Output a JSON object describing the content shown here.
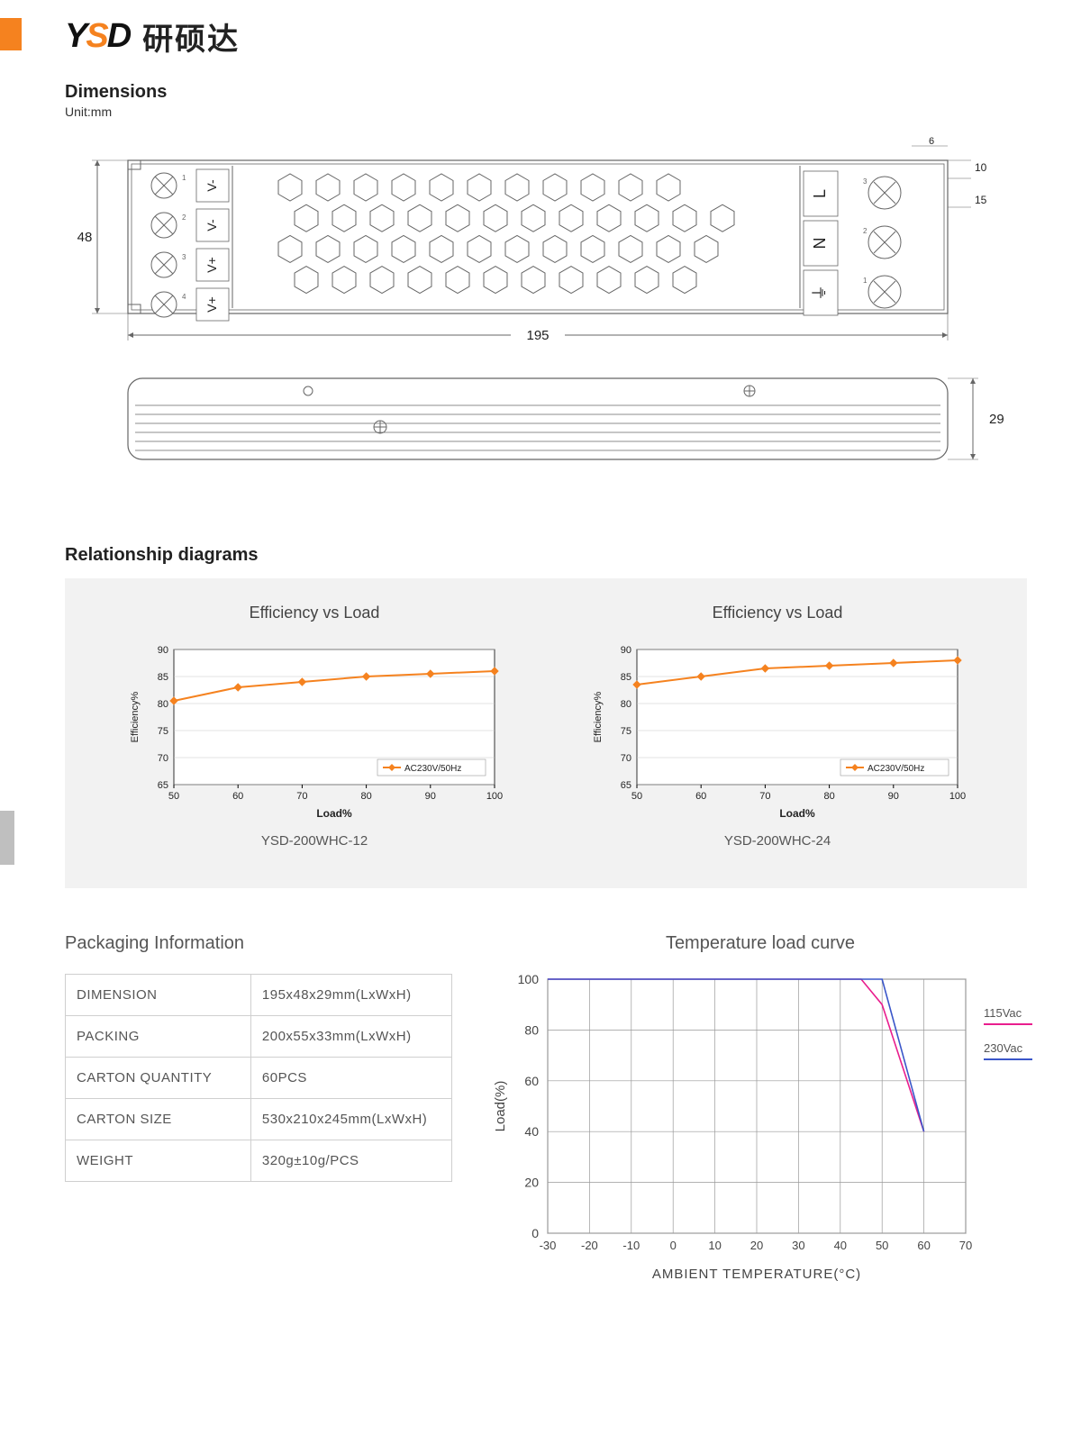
{
  "brand": {
    "logo_text": "YSD",
    "cn_text": "研硕达"
  },
  "dimensions": {
    "title": "Dimensions",
    "unit_label": "Unit:mm",
    "top_view": {
      "width_label": "195",
      "height_label": "48",
      "small_top_label": "6",
      "right_small_1": "10",
      "right_small_2": "15",
      "output_terminals": [
        "V-",
        "V-",
        "V+",
        "V+"
      ],
      "output_terminal_nums": [
        "1",
        "2",
        "3",
        "4"
      ],
      "input_labels": [
        "L",
        "N",
        "⏚"
      ],
      "input_nums": [
        "3",
        "2",
        "1"
      ]
    },
    "side_view": {
      "height_label": "29"
    },
    "stroke_color": "#666666",
    "fill_color": "#ffffff"
  },
  "relationship": {
    "section_title": "Relationship diagrams",
    "charts": [
      {
        "title": "Efficiency vs Load",
        "caption": "YSD-200WHC-12",
        "xlabel": "Load%",
        "ylabel": "Efficiency%",
        "legend": "AC230V/50Hz",
        "xlim": [
          50,
          100
        ],
        "xtick_step": 10,
        "ylim": [
          65,
          90
        ],
        "ytick_step": 5,
        "line_color": "#f5821f",
        "grid_color": "#c8c8c8",
        "bg_color": "#ffffff",
        "marker": "diamond",
        "data_x": [
          50,
          60,
          70,
          80,
          90,
          100
        ],
        "data_y": [
          80.5,
          83,
          84,
          85,
          85.5,
          86
        ]
      },
      {
        "title": "Efficiency vs Load",
        "caption": "YSD-200WHC-24",
        "xlabel": "Load%",
        "ylabel": "Efficiency%",
        "legend": "AC230V/50Hz",
        "xlim": [
          50,
          100
        ],
        "xtick_step": 10,
        "ylim": [
          65,
          90
        ],
        "ytick_step": 5,
        "line_color": "#f5821f",
        "grid_color": "#c8c8c8",
        "bg_color": "#ffffff",
        "marker": "diamond",
        "data_x": [
          50,
          60,
          70,
          80,
          90,
          100
        ],
        "data_y": [
          83.5,
          85,
          86.5,
          87,
          87.5,
          88
        ]
      }
    ]
  },
  "packaging": {
    "title": "Packaging Information",
    "rows": [
      {
        "label": "DIMENSION",
        "value": "195x48x29mm(LxWxH)"
      },
      {
        "label": "PACKING",
        "value": "200x55x33mm(LxWxH)"
      },
      {
        "label": "CARTON QUANTITY",
        "value": "60PCS"
      },
      {
        "label": "CARTON SIZE",
        "value": "530x210x245mm(LxWxH)"
      },
      {
        "label": "WEIGHT",
        "value": "320g±10g/PCS"
      }
    ]
  },
  "temperature_curve": {
    "title": "Temperature load curve",
    "xlabel": "AMBIENT TEMPERATURE(°C)",
    "ylabel": "Load(%)",
    "xlim": [
      -30,
      70
    ],
    "xtick_step": 10,
    "ylim": [
      0,
      100
    ],
    "ytick_step": 20,
    "grid_color": "#999999",
    "bg_color": "#ffffff",
    "series": [
      {
        "name": "115Vac",
        "color": "#e91e8e",
        "underline": "#e91e8e",
        "x": [
          -30,
          45,
          50,
          60
        ],
        "y": [
          100,
          100,
          90,
          40
        ]
      },
      {
        "name": "230Vac",
        "color": "#3a56c9",
        "underline": "#3a56c9",
        "x": [
          -30,
          50,
          60
        ],
        "y": [
          100,
          100,
          40
        ]
      }
    ]
  }
}
